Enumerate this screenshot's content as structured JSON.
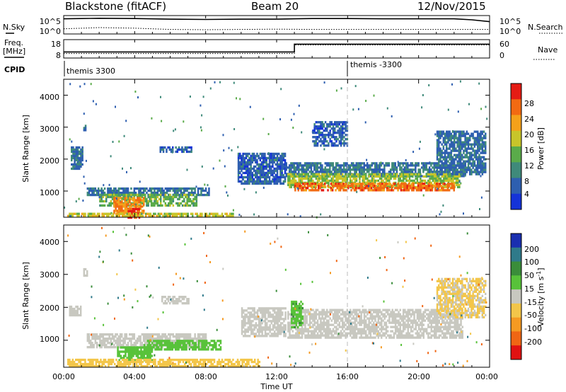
{
  "header": {
    "station": "Blackstone (fitACF)",
    "beam": "Beam 20",
    "date": "12/Nov/2015"
  },
  "aux": {
    "nsky_label": "N.Sky",
    "nsearch_label": "N.Search",
    "freq_label_1": "Freq.",
    "freq_label_2": "[MHz]",
    "nave_label": "Nave",
    "cpid_label": "CPID",
    "nsky_ticks": [
      "10^5",
      "10^0"
    ],
    "nsearch_ticks": [
      "10^5",
      "10^0"
    ],
    "freq_ticks": [
      "18",
      "8"
    ],
    "nave_ticks": [
      "60",
      "0"
    ],
    "cpid_segments": [
      {
        "label": "themis 3300",
        "start_hour": 0,
        "end_hour": 16
      },
      {
        "label": "themis -3300",
        "start_hour": 16,
        "end_hour": 24
      }
    ]
  },
  "axes": {
    "xlabel": "Time UT",
    "ylabel": "Slant Range [km]",
    "x_ticks": [
      "00:00",
      "04:00",
      "08:00",
      "12:00",
      "16:00",
      "20:00",
      "00:00"
    ],
    "y_ticks": [
      "1000",
      "2000",
      "3000",
      "4000"
    ]
  },
  "power_scale": {
    "label": "Power [dB]",
    "ticks": [
      "4",
      "8",
      "12",
      "16",
      "20",
      "24",
      "28"
    ],
    "colors": [
      "#1533d8",
      "#2e5fb0",
      "#3f8a7a",
      "#5aab4a",
      "#c8c52a",
      "#f5a11a",
      "#f26a12",
      "#e51b14"
    ]
  },
  "velocity_scale": {
    "label": "Velocity [m s",
    "label_sup": "-1",
    "label_end": "]",
    "ticks": [
      "200",
      "100",
      "50",
      "15",
      "-15",
      "-50",
      "-100",
      "-200"
    ],
    "colors": [
      "#1a2fb0",
      "#2f7a8a",
      "#3a8d3a",
      "#58c23a",
      "#c8c8c0",
      "#f3c64a",
      "#f59a22",
      "#f06614",
      "#e01212"
    ]
  },
  "chart_data": [
    {
      "type": "line",
      "title": "",
      "xlabel": "",
      "ylabel": "N.Sky",
      "xlim": [
        0,
        24
      ],
      "ylim": [
        0,
        5
      ],
      "y_scale": "log10",
      "series": [
        {
          "name": "N.Sky",
          "style": "solid",
          "x": [
            0,
            1,
            2,
            4,
            6,
            8,
            10,
            12,
            13,
            14,
            16,
            18,
            20,
            22,
            23,
            24
          ],
          "y": [
            4.4,
            4.5,
            4.6,
            4.5,
            4.3,
            4.2,
            4.3,
            4.3,
            4.4,
            4.5,
            4.5,
            4.4,
            4.4,
            4.4,
            4.1,
            3.5
          ]
        },
        {
          "name": "N.Search",
          "style": "dotted",
          "x": [
            0,
            2,
            4,
            6,
            8,
            10,
            12,
            14,
            16,
            18,
            20,
            22,
            24
          ],
          "y": [
            1.2,
            1.6,
            1.4,
            1.0,
            0.9,
            1.0,
            1.1,
            1.0,
            1.0,
            1.0,
            1.0,
            1.0,
            1.0
          ]
        }
      ]
    },
    {
      "type": "line",
      "title": "",
      "xlabel": "",
      "ylabel": "Freq. [MHz]",
      "xlim": [
        0,
        24
      ],
      "ylim": [
        8,
        18
      ],
      "series": [
        {
          "name": "Freq. [MHz]",
          "style": "solid",
          "x": [
            0,
            13,
            13,
            24
          ],
          "y": [
            11,
            11,
            16,
            16
          ]
        },
        {
          "name": "Nave",
          "style": "dotted",
          "x": [
            0,
            13,
            13,
            24
          ],
          "y": [
            10,
            10,
            15.5,
            15.5
          ]
        }
      ]
    },
    {
      "type": "heatmap",
      "title": "",
      "quantity": "Power [dB]",
      "xlabel": "Time UT",
      "ylabel": "Slant Range [km]",
      "xlim": [
        0,
        24
      ],
      "ylim": [
        180,
        4500
      ],
      "zlim": [
        0,
        30
      ],
      "blobs": [
        {
          "x0": 0.4,
          "x1": 1.1,
          "y0": 1700,
          "y1": 2400,
          "value": 7
        },
        {
          "x0": 1.1,
          "x1": 1.2,
          "y0": 2900,
          "y1": 3150,
          "value": 8
        },
        {
          "x0": 1.3,
          "x1": 8.2,
          "y0": 850,
          "y1": 1100,
          "value": 7
        },
        {
          "x0": 2.0,
          "x1": 7.5,
          "y0": 550,
          "y1": 900,
          "value": 14
        },
        {
          "x0": 2.8,
          "x1": 4.5,
          "y0": 300,
          "y1": 800,
          "value": 24
        },
        {
          "x0": 3.6,
          "x1": 4.3,
          "y0": 180,
          "y1": 450,
          "value": 29
        },
        {
          "x0": 0.2,
          "x1": 9.5,
          "y0": 180,
          "y1": 300,
          "value": 18
        },
        {
          "x0": 5.4,
          "x1": 7.2,
          "y0": 2200,
          "y1": 2400,
          "value": 6
        },
        {
          "x0": 9.8,
          "x1": 12.5,
          "y0": 1200,
          "y1": 2200,
          "value": 6
        },
        {
          "x0": 12.5,
          "x1": 22.6,
          "y0": 1450,
          "y1": 1900,
          "value": 8
        },
        {
          "x0": 12.6,
          "x1": 22.3,
          "y0": 1100,
          "y1": 1550,
          "value": 16
        },
        {
          "x0": 13.0,
          "x1": 22.0,
          "y0": 1000,
          "y1": 1250,
          "value": 26
        },
        {
          "x0": 14.0,
          "x1": 16.0,
          "y0": 2400,
          "y1": 3200,
          "value": 6
        },
        {
          "x0": 21.0,
          "x1": 23.8,
          "y0": 1500,
          "y1": 2900,
          "value": 7
        }
      ]
    },
    {
      "type": "heatmap",
      "title": "",
      "quantity": "Velocity [m s-1]",
      "xlabel": "Time UT",
      "ylabel": "Slant Range [km]",
      "xlim": [
        0,
        24
      ],
      "ylim": [
        180,
        4500
      ],
      "zlim": [
        -250,
        250
      ],
      "blobs": [
        {
          "x0": 0.3,
          "x1": 1.0,
          "y0": 1750,
          "y1": 2050,
          "value": 0
        },
        {
          "x0": 1.1,
          "x1": 1.3,
          "y0": 3000,
          "y1": 3200,
          "value": 0
        },
        {
          "x0": 1.3,
          "x1": 8.0,
          "y0": 800,
          "y1": 1200,
          "value": 0
        },
        {
          "x0": 4.5,
          "x1": 8.8,
          "y0": 700,
          "y1": 1000,
          "value": 35
        },
        {
          "x0": 3.0,
          "x1": 5.0,
          "y0": 400,
          "y1": 800,
          "value": 30
        },
        {
          "x0": 0.2,
          "x1": 11.0,
          "y0": 180,
          "y1": 420,
          "value": -30
        },
        {
          "x0": 5.5,
          "x1": 7.0,
          "y0": 2150,
          "y1": 2350,
          "value": 0
        },
        {
          "x0": 10.0,
          "x1": 12.5,
          "y0": 1100,
          "y1": 2000,
          "value": 0
        },
        {
          "x0": 12.6,
          "x1": 22.5,
          "y0": 1100,
          "y1": 1950,
          "value": 0
        },
        {
          "x0": 12.8,
          "x1": 13.5,
          "y0": 1400,
          "y1": 2200,
          "value": 40
        },
        {
          "x0": 21.0,
          "x1": 23.8,
          "y0": 1700,
          "y1": 2900,
          "value": -20
        }
      ]
    }
  ]
}
